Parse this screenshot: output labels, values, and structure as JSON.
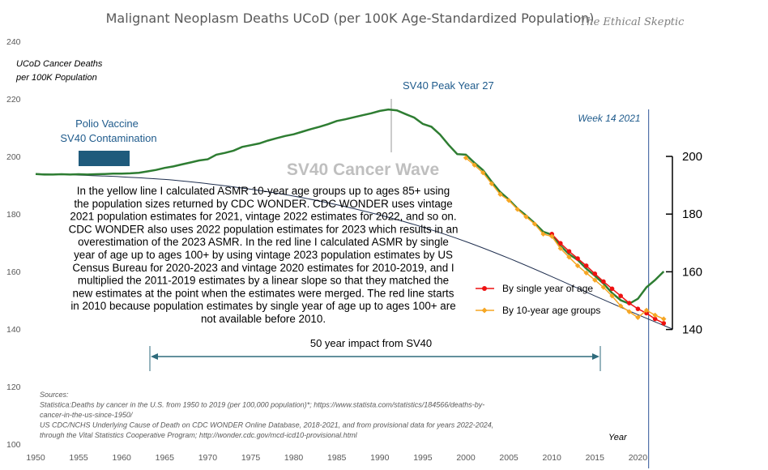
{
  "chart_data": {
    "type": "line",
    "title": "Malignant Neoplasm Deaths UCoD (per 100K Age-Standardized Population)",
    "brand": "The Ethical Skeptic",
    "ylabel_line1": "UCoD Cancer Deaths",
    "ylabel_line2": "per 100K Population",
    "xlabel": "Year",
    "xlim": [
      1950,
      2024
    ],
    "ylim": [
      100,
      240
    ],
    "y2lim": [
      130,
      200
    ],
    "x_ticks": [
      1950,
      1955,
      1960,
      1965,
      1970,
      1975,
      1980,
      1985,
      1990,
      1995,
      2000,
      2005,
      2010,
      2015,
      2020
    ],
    "y_ticks": [
      100,
      120,
      140,
      160,
      180,
      200,
      220,
      240
    ],
    "y2_ticks": [
      140,
      160,
      180,
      200
    ],
    "main_series": {
      "x": [
        1950,
        1951,
        1952,
        1953,
        1954,
        1955,
        1956,
        1957,
        1958,
        1959,
        1960,
        1961,
        1962,
        1963,
        1964,
        1965,
        1966,
        1967,
        1968,
        1969,
        1970,
        1971,
        1972,
        1973,
        1974,
        1975,
        1976,
        1977,
        1978,
        1979,
        1980,
        1981,
        1982,
        1983,
        1984,
        1985,
        1986,
        1987,
        1988,
        1989,
        1990,
        1991,
        1992,
        1993,
        1994,
        1995,
        1996,
        1997,
        1998,
        1999,
        2000,
        2001,
        2002,
        2003,
        2004,
        2005,
        2006,
        2007,
        2008,
        2009,
        2010,
        2011,
        2012,
        2013,
        2014,
        2015,
        2016,
        2017,
        2018,
        2019,
        2020,
        2021,
        2022,
        2023
      ],
      "y": [
        193.9,
        193.7,
        193.7,
        193.8,
        193.7,
        193.8,
        193.7,
        193.8,
        193.9,
        194.0,
        194.0,
        194.1,
        194.3,
        194.8,
        195.3,
        196.0,
        196.5,
        197.2,
        197.9,
        198.6,
        199.0,
        200.6,
        201.2,
        202.0,
        203.3,
        203.9,
        204.5,
        205.5,
        206.3,
        207.1,
        207.7,
        208.6,
        209.5,
        210.3,
        211.2,
        212.3,
        212.9,
        213.6,
        214.3,
        215.0,
        215.8,
        216.3,
        216.0,
        214.7,
        213.5,
        211.3,
        210.3,
        207.6,
        204.0,
        200.8,
        200.6,
        197.8,
        195.2,
        191.2,
        187.6,
        185.0,
        181.9,
        179.5,
        176.8,
        173.8,
        172.8,
        169.0,
        166.0,
        164.0,
        161.0,
        158.5,
        155.8,
        152.5,
        150.0,
        148.8,
        150.5,
        154.5,
        157.0,
        160.0
      ]
    },
    "baseline_curve": {
      "x": [
        1950,
        1955,
        1960,
        1965,
        1970,
        1975,
        1980,
        1985,
        1990,
        1995,
        2000,
        2005,
        2010,
        2015,
        2020,
        2024
      ],
      "y": [
        194.0,
        193.5,
        192.9,
        192.0,
        190.5,
        188.6,
        186.2,
        183.2,
        179.6,
        175.4,
        170.4,
        164.6,
        158.2,
        151.5,
        145.0,
        140.0
      ]
    },
    "series": [
      {
        "name": "By single year of age",
        "color": "#ee1111",
        "x": [
          2010,
          2011,
          2012,
          2013,
          2014,
          2015,
          2016,
          2017,
          2018,
          2019,
          2020,
          2021,
          2022,
          2023
        ],
        "y": [
          173.0,
          169.8,
          167.0,
          164.5,
          162.0,
          159.2,
          156.5,
          154.0,
          151.5,
          149.0,
          147.0,
          145.5,
          143.5,
          142.0
        ]
      },
      {
        "name": "By 10-year age groups",
        "color": "#f6a623",
        "x": [
          2000,
          2001,
          2002,
          2003,
          2004,
          2005,
          2006,
          2007,
          2008,
          2009,
          2010,
          2011,
          2012,
          2013,
          2014,
          2015,
          2016,
          2017,
          2018,
          2019,
          2020,
          2021,
          2022,
          2023
        ],
        "y": [
          199.5,
          197.0,
          194.3,
          190.5,
          186.8,
          184.7,
          181.6,
          179.0,
          176.5,
          173.0,
          172.2,
          168.0,
          165.0,
          162.0,
          159.5,
          157.0,
          154.5,
          151.5,
          148.0,
          146.0,
          144.0,
          146.5,
          144.8,
          143.5
        ]
      }
    ],
    "annotations": {
      "polio_line1": "Polio Vaccine",
      "polio_line2": "SV40 Contamination",
      "peak": "SV40  Peak Year 27",
      "week": "Week 14 2021",
      "wave": "SV40 Cancer Wave",
      "impact": "50 year impact from SV40"
    },
    "note_lines": [
      "In the yellow line I calculated ASMR 10-year age groups up to ages 85+ using",
      "the population sizes returned by CDC WONDER. CDC WONDER uses vintage",
      "2021 population estimates for 2021, vintage 2022 estimates for 2022, and so on.",
      "CDC WONDER also uses 2022 population estimates for 2023 which results in an",
      "overestimation of the 2023 ASMR. In the red line I calculated ASMR by single",
      "year of age up to ages 100+ by using vintage 2023 population estimates by US",
      "Census Bureau for 2020-2023 and vintage 2020 estimates for 2010-2019, and I",
      "multiplied the 2011-2019 estimates by a linear slope so that they matched the",
      "new estimates at the point when the estimates were merged. The red line starts",
      "in 2010 because population estimates by single year of age up to ages 100+ are",
      "not available before 2010."
    ],
    "sources_lines": [
      "Sources:",
      "Statistica:Deaths by cancer in the U.S. from 1950 to 2019 (per 100,000 population)*; https://www.statista.com/statistics/184566/deaths-by-",
      "cancer-in-the-us-since-1950/",
      "US CDC/NCHS Underlying Cause of Death on CDC WONDER Online Database, 2018-2021, and from provisional data for years 2022-2024,",
      "through the Vital Statistics Cooperative Program; http://wonder.cdc.gov/mcd-icd10-provisional.html"
    ],
    "colors": {
      "main": "#2e7d32",
      "baseline": "#1f2f4f",
      "polio_box": "#1f5b7c",
      "week_line": "#2f5597",
      "impact_arrow": "#2f6b7c"
    }
  }
}
